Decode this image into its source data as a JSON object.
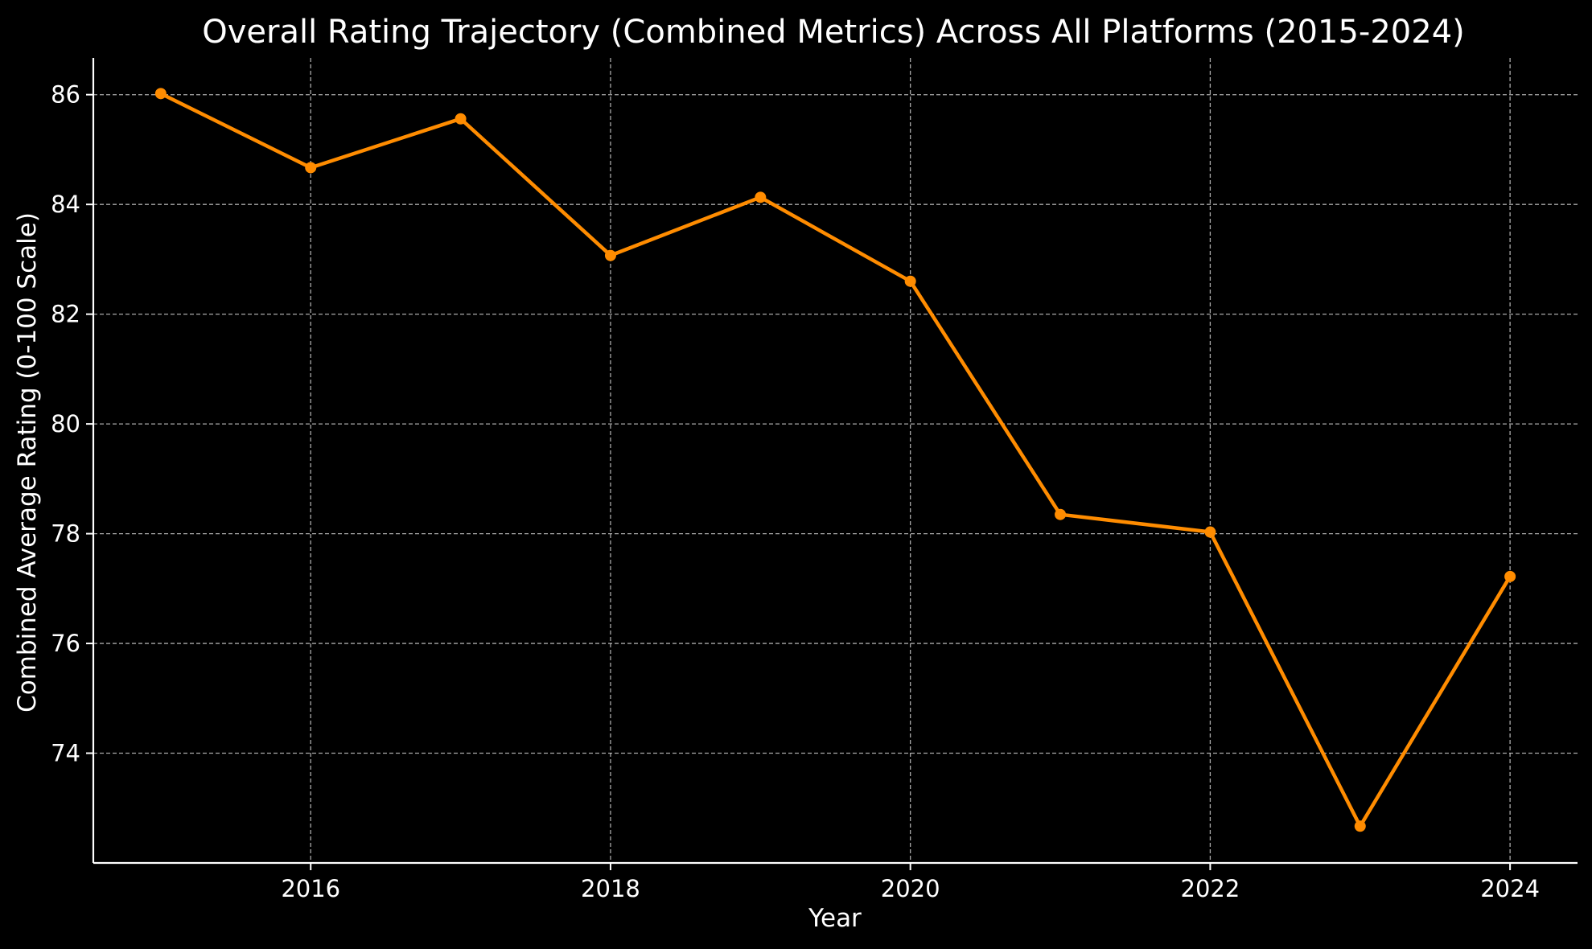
{
  "chart_data": {
    "type": "line",
    "title": "Overall Rating Trajectory (Combined Metrics) Across All Platforms (2015-2024)",
    "xlabel": "Year",
    "ylabel": "Combined Average Rating (0-100 Scale)",
    "x": [
      2015,
      2016,
      2017,
      2018,
      2019,
      2020,
      2021,
      2022,
      2023,
      2024
    ],
    "values": [
      86.02,
      84.67,
      85.56,
      83.07,
      84.13,
      82.6,
      78.35,
      78.03,
      72.67,
      77.22
    ],
    "xlim": [
      2014.55,
      2024.45
    ],
    "ylim": [
      72.0,
      86.67
    ],
    "xticks": [
      2016,
      2018,
      2020,
      2022,
      2024
    ],
    "yticks": [
      74,
      76,
      78,
      80,
      82,
      84,
      86
    ],
    "grid": true,
    "grid_style": "dashed",
    "line_color": "#ff8c00",
    "marker": "circle",
    "background": "#000000",
    "text_color": "#ffffff"
  }
}
